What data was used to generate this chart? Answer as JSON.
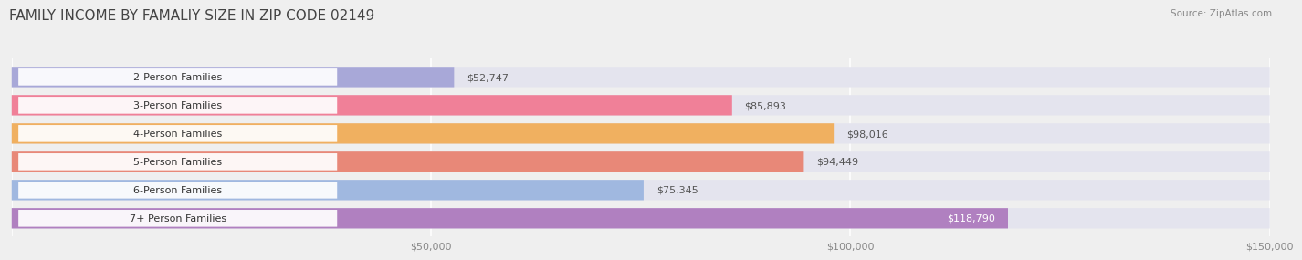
{
  "title": "FAMILY INCOME BY FAMALIY SIZE IN ZIP CODE 02149",
  "source": "Source: ZipAtlas.com",
  "categories": [
    "2-Person Families",
    "3-Person Families",
    "4-Person Families",
    "5-Person Families",
    "6-Person Families",
    "7+ Person Families"
  ],
  "values": [
    52747,
    85893,
    98016,
    94449,
    75345,
    118790
  ],
  "bar_colors": [
    "#a8a8d8",
    "#f08098",
    "#f0b060",
    "#e88878",
    "#a0b8e0",
    "#b080c0"
  ],
  "value_labels": [
    "$52,747",
    "$85,893",
    "$98,016",
    "$94,449",
    "$75,345",
    "$118,790"
  ],
  "xlim": [
    0,
    150000
  ],
  "xticks": [
    0,
    50000,
    100000,
    150000
  ],
  "xtick_labels": [
    "$50,000",
    "$100,000",
    "$150,000"
  ],
  "background_color": "#efefef",
  "bar_background_color": "#e4e4ee",
  "title_fontsize": 11,
  "label_fontsize": 8.0,
  "value_fontsize": 8.0,
  "last_bar_white_text": true
}
